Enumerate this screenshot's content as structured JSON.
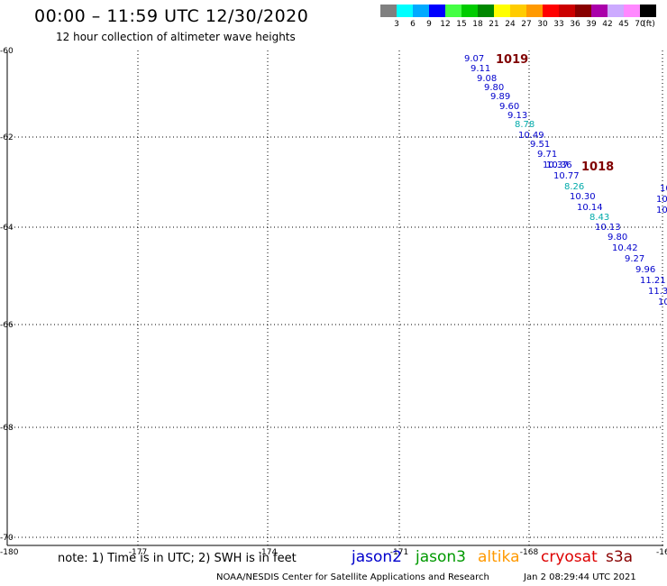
{
  "header": {
    "title": "00:00 – 11:59 UTC 12/30/2020",
    "subtitle": "12 hour collection of altimeter wave heights"
  },
  "legend": {
    "colors": [
      "#808080",
      "#00ffff",
      "#00aaff",
      "#0000ff",
      "#44ff44",
      "#00cc00",
      "#008800",
      "#ffff00",
      "#ffcc00",
      "#ff9900",
      "#ff0000",
      "#cc0000",
      "#880000",
      "#aa00aa",
      "#ccaaff",
      "#ff88ff",
      "#000000"
    ],
    "labels": [
      "3",
      "6",
      "9",
      "12",
      "15",
      "18",
      "21",
      "24",
      "27",
      "30",
      "33",
      "36",
      "39",
      "42",
      "45",
      "70",
      "(ft)"
    ]
  },
  "map": {
    "lat_labels": [
      "-60",
      "-62",
      "-64",
      "-66",
      "-68",
      "-70"
    ],
    "lon_labels": [
      "-180",
      "-177",
      "-174",
      "-171",
      "-168",
      "-16"
    ]
  },
  "pressure_centers": [
    "1019",
    "1018"
  ],
  "observations": {
    "track1": [
      "9.07",
      "9.11",
      "9.08",
      "9.80",
      "9.89",
      "9.60",
      "9.13",
      "8.78",
      "10.49",
      "9.51",
      "9.71",
      "10.37",
      "10.77",
      "8.26",
      "10.30",
      "10.14",
      "8.43",
      "10.13",
      "9.80",
      "10.42",
      "9.27",
      "9.96",
      "11.21",
      "11.3",
      "10"
    ],
    "track1_sats": [
      "jason2",
      "jason2",
      "jason2",
      "jason2",
      "jason2",
      "jason2",
      "jason2",
      "jason3_cyan",
      "jason2",
      "jason2",
      "jason2",
      "jason2",
      "jason2",
      "jason3_cyan",
      "jason2",
      "jason2",
      "jason3_cyan",
      "jason2",
      "jason2",
      "jason2",
      "jason2",
      "jason2",
      "jason2",
      "jason2",
      "jason2"
    ],
    "overlap": "10.36",
    "track2": [
      "10",
      "10",
      "10"
    ]
  },
  "footer": {
    "note": "note: 1) Time is in UTC; 2) SWH is in feet",
    "satellites": [
      {
        "name": "jason2",
        "color": "#0000cc"
      },
      {
        "name": "jason3",
        "color": "#009900"
      },
      {
        "name": "altika",
        "color": "#ff9900"
      },
      {
        "name": "cryosat",
        "color": "#dd0000"
      },
      {
        "name": "s3a",
        "color": "#880000"
      }
    ],
    "credit": "NOAA/NESDIS Center for Satellite Applications and Research",
    "timestamp": "Jan  2 08:29:44 UTC 2021"
  },
  "colors": {
    "jason2": "#0000cc",
    "jason3_cyan": "#00aaaa",
    "pressure": "#800000"
  }
}
